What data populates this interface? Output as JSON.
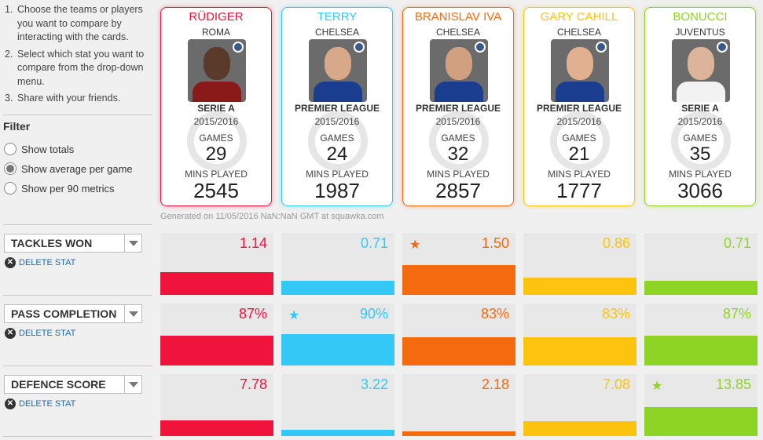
{
  "instructions": [
    {
      "num": "1.",
      "text": "Choose the teams or players you want to compare by interacting with the cards."
    },
    {
      "num": "2.",
      "text": "Select which stat you want to compare from the drop-down menu."
    },
    {
      "num": "3.",
      "text": "Share with your friends."
    }
  ],
  "filter": {
    "title": "Filter",
    "options": [
      {
        "label": "Show totals",
        "checked": false
      },
      {
        "label": "Show average per game",
        "checked": true
      },
      {
        "label": "Show per 90 metrics",
        "checked": false
      }
    ]
  },
  "players": [
    {
      "name": "RÜDIGER",
      "team": "ROMA",
      "league": "SERIE A",
      "season": "2015/2016",
      "games_label": "GAMES",
      "games": "29",
      "mins_label": "MINS PLAYED",
      "mins": "2545",
      "color": "#f0143c",
      "skin": "#5a3a2a",
      "shirt": "#8a1a1a"
    },
    {
      "name": "TERRY",
      "team": "CHELSEA",
      "league": "PREMIER LEAGUE",
      "season": "2015/2016",
      "games_label": "GAMES",
      "games": "24",
      "mins_label": "MINS PLAYED",
      "mins": "1987",
      "color": "#33c8f5",
      "skin": "#d8a88a",
      "shirt": "#1a3d8f"
    },
    {
      "name": "BRANISLAV IVA",
      "team": "CHELSEA",
      "league": "PREMIER LEAGUE",
      "season": "2015/2016",
      "games_label": "GAMES",
      "games": "32",
      "mins_label": "MINS PLAYED",
      "mins": "2857",
      "color": "#f56a0f",
      "skin": "#d0a080",
      "shirt": "#1a3d8f"
    },
    {
      "name": "GARY CAHILL",
      "team": "CHELSEA",
      "league": "PREMIER LEAGUE",
      "season": "2015/2016",
      "games_label": "GAMES",
      "games": "21",
      "mins_label": "MINS PLAYED",
      "mins": "1777",
      "color": "#fcc30f",
      "skin": "#e0b090",
      "shirt": "#1a3d8f"
    },
    {
      "name": "BONUCCI",
      "team": "JUVENTUS",
      "league": "SERIE A",
      "season": "2015/2016",
      "games_label": "GAMES",
      "games": "35",
      "mins_label": "MINS PLAYED",
      "mins": "3066",
      "color": "#8ed424",
      "skin": "#dcb49a",
      "shirt": "#f2f2f2"
    }
  ],
  "generated": "Generated on 11/05/2016 NaN:NaN GMT at squawka.com",
  "stats": [
    {
      "label": "TACKLES WON",
      "delete_label": "DELETE STAT",
      "values": [
        "1.14",
        "0.71",
        "1.50",
        "0.86",
        "0.71"
      ],
      "fractions": [
        0.47,
        0.29,
        0.62,
        0.35,
        0.29
      ],
      "best_index": 2
    },
    {
      "label": "PASS COMPLETION",
      "delete_label": "DELETE STAT",
      "values": [
        "87%",
        "90%",
        "83%",
        "83%",
        "87%"
      ],
      "fractions": [
        0.61,
        0.65,
        0.58,
        0.58,
        0.61
      ],
      "best_index": 1
    },
    {
      "label": "DEFENCE SCORE",
      "delete_label": "DELETE STAT",
      "values": [
        "7.78",
        "3.22",
        "2.18",
        "7.08",
        "13.85"
      ],
      "fractions": [
        0.33,
        0.13,
        0.1,
        0.3,
        0.59
      ],
      "best_index": 4
    }
  ]
}
